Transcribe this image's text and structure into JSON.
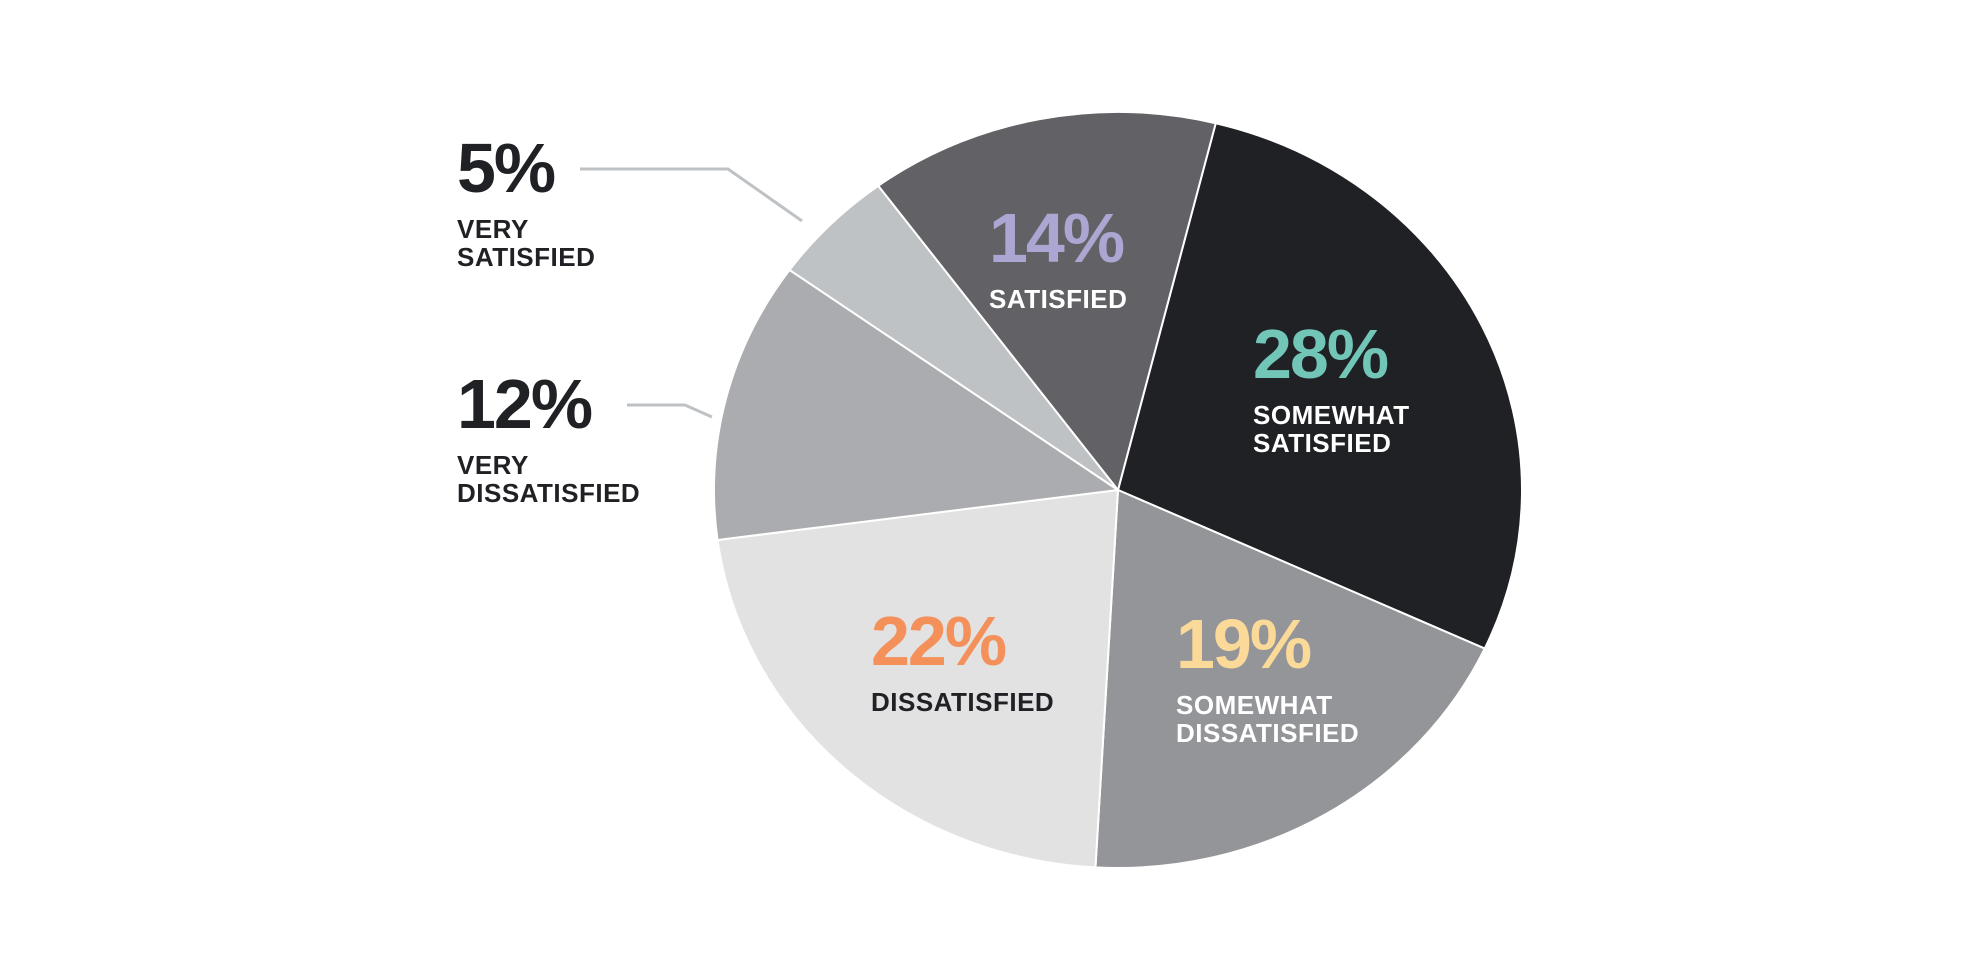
{
  "chart_data": {
    "type": "pie",
    "unit": "%",
    "slices": [
      {
        "value": 28,
        "value_label": "28%",
        "label_lines": [
          "SOMEWHAT",
          "SATISFIED"
        ],
        "color": "#202124",
        "value_color": "#72C6B8",
        "label_color": "#FFFFFF",
        "label_placement": "inside"
      },
      {
        "value": 19,
        "value_label": "19%",
        "label_lines": [
          "SOMEWHAT",
          "DISSATISFIED"
        ],
        "color": "#949598",
        "value_color": "#FBD998",
        "label_color": "#FFFFFF",
        "label_placement": "inside"
      },
      {
        "value": 22,
        "value_label": "22%",
        "label_lines": [
          "DISSATISFIED"
        ],
        "color": "#E2E2E3",
        "value_color": "#F4915A",
        "label_color": "#202124",
        "label_placement": "inside"
      },
      {
        "value": 12,
        "value_label": "12%",
        "label_lines": [
          "VERY",
          "DISSATISFIED"
        ],
        "color": "#ABACAF",
        "value_color": "#202124",
        "label_color": "#202124",
        "label_placement": "outside-left"
      },
      {
        "value": 5,
        "value_label": "5%",
        "label_lines": [
          "VERY",
          "SATISFIED"
        ],
        "color": "#BFC2C5",
        "value_color": "#202124",
        "label_color": "#202124",
        "label_placement": "outside-left"
      },
      {
        "value": 14,
        "value_label": "14%",
        "label_lines": [
          "SATISFIED"
        ],
        "color": "#626266",
        "value_color": "#ABA6D2",
        "label_color": "#FFFFFF",
        "label_placement": "inside"
      }
    ],
    "start_angle_deg": 14,
    "direction": "clockwise",
    "leader_line_color": "#BFC2C5",
    "legend": "none"
  }
}
